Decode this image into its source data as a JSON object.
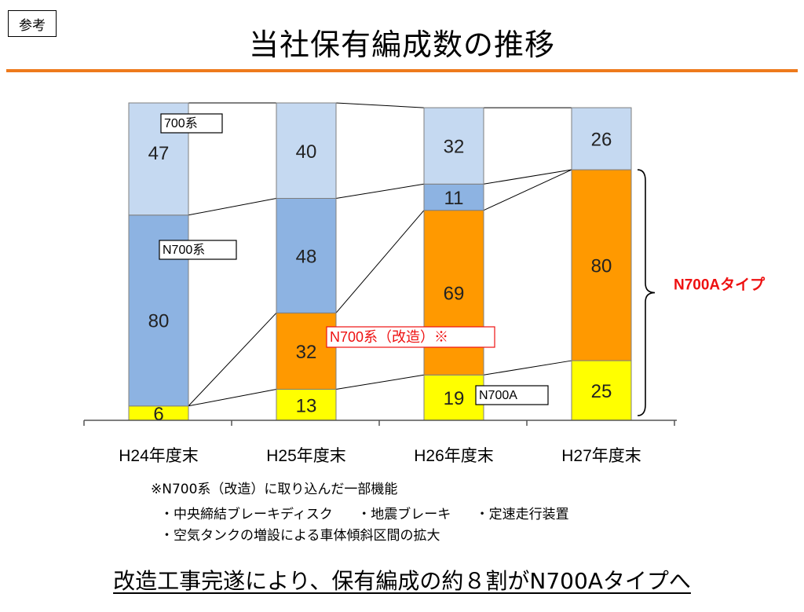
{
  "badge": "参考",
  "title": "当社保有編成数の推移",
  "colors": {
    "rule": "#ee7a1c",
    "s700": "#c5d9f1",
    "n700": "#8db3e2",
    "n700_mod": "#ff9900",
    "n700a": "#ffff00",
    "callout_red": "#ee1111"
  },
  "chart_data": {
    "type": "bar",
    "stacked": true,
    "categories": [
      "H24年度末",
      "H25年度末",
      "H26年度末",
      "H27年度末"
    ],
    "series": [
      {
        "name": "N700A",
        "values": [
          6,
          13,
          19,
          25
        ]
      },
      {
        "name": "N700系（改造）※",
        "values": [
          0,
          32,
          69,
          80
        ]
      },
      {
        "name": "N700系",
        "values": [
          80,
          48,
          11,
          0
        ]
      },
      {
        "name": "700系",
        "values": [
          47,
          40,
          32,
          26
        ]
      }
    ],
    "ylim": [
      0,
      133
    ],
    "grid": false,
    "series_labels": {
      "s700": "700系",
      "n700": "N700系",
      "n700_mod": "N700系（改造）※",
      "n700a": "N700A"
    },
    "bracket_label": "N700Aタイプ"
  },
  "notes": {
    "heading": "※N700系（改造）に取り込んだ一部機能",
    "items": [
      "・中央締結ブレーキディスク",
      "・地震ブレーキ",
      "・定速走行装置"
    ],
    "items2": "・空気タンクの増設による車体傾斜区間の拡大"
  },
  "conclusion": "改造工事完遂により、保有編成の約８割がN700Aタイプへ"
}
